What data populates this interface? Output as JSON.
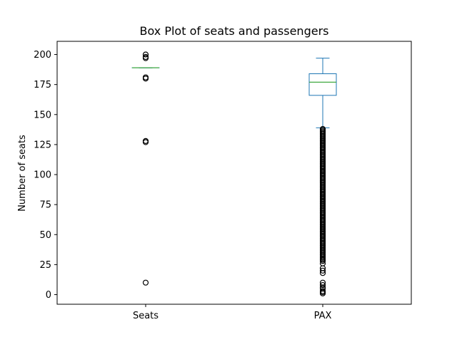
{
  "chart_data": {
    "type": "box",
    "title": "Box Plot of seats and passengers",
    "xlabel": "",
    "ylabel": "Number of seats",
    "ylim": [
      -8,
      211
    ],
    "yticks": [
      0,
      25,
      50,
      75,
      100,
      125,
      150,
      175,
      200
    ],
    "grid": false,
    "colors": {
      "box": "#1f77b4",
      "median": "#2ca02c",
      "flier": "#000000"
    },
    "categories": [
      "Seats",
      "PAX"
    ],
    "boxes": [
      {
        "category": "Seats",
        "whisker_low": 189,
        "q1": 189,
        "median": 189,
        "q3": 189,
        "whisker_high": 189,
        "fliers": [
          200,
          198,
          197,
          181,
          180,
          128,
          127,
          10
        ]
      },
      {
        "category": "PAX",
        "whisker_low": 139,
        "q1": 166,
        "median": 177,
        "q3": 184,
        "whisker_high": 197,
        "fliers": [
          138,
          137,
          136,
          135,
          134,
          133,
          132,
          131,
          130,
          129,
          128,
          127,
          126,
          125,
          124,
          123,
          122,
          121,
          120,
          119,
          118,
          117,
          116,
          115,
          114,
          113,
          112,
          111,
          110,
          109,
          108,
          107,
          106,
          105,
          104,
          103,
          102,
          101,
          100,
          99,
          98,
          97,
          96,
          95,
          94,
          93,
          92,
          91,
          90,
          89,
          88,
          87,
          86,
          85,
          84,
          83,
          82,
          81,
          80,
          79,
          78,
          77,
          76,
          75,
          74,
          73,
          72,
          71,
          70,
          69,
          68,
          67,
          66,
          65,
          64,
          63,
          62,
          61,
          60,
          59,
          58,
          57,
          56,
          55,
          54,
          53,
          52,
          51,
          50,
          49,
          48,
          47,
          46,
          45,
          44,
          43,
          42,
          41,
          40,
          39,
          38,
          37,
          36,
          35,
          34,
          33,
          32,
          31,
          30,
          29,
          28,
          26,
          22,
          20,
          18,
          10,
          8,
          6,
          5,
          3,
          2,
          1
        ]
      }
    ]
  }
}
